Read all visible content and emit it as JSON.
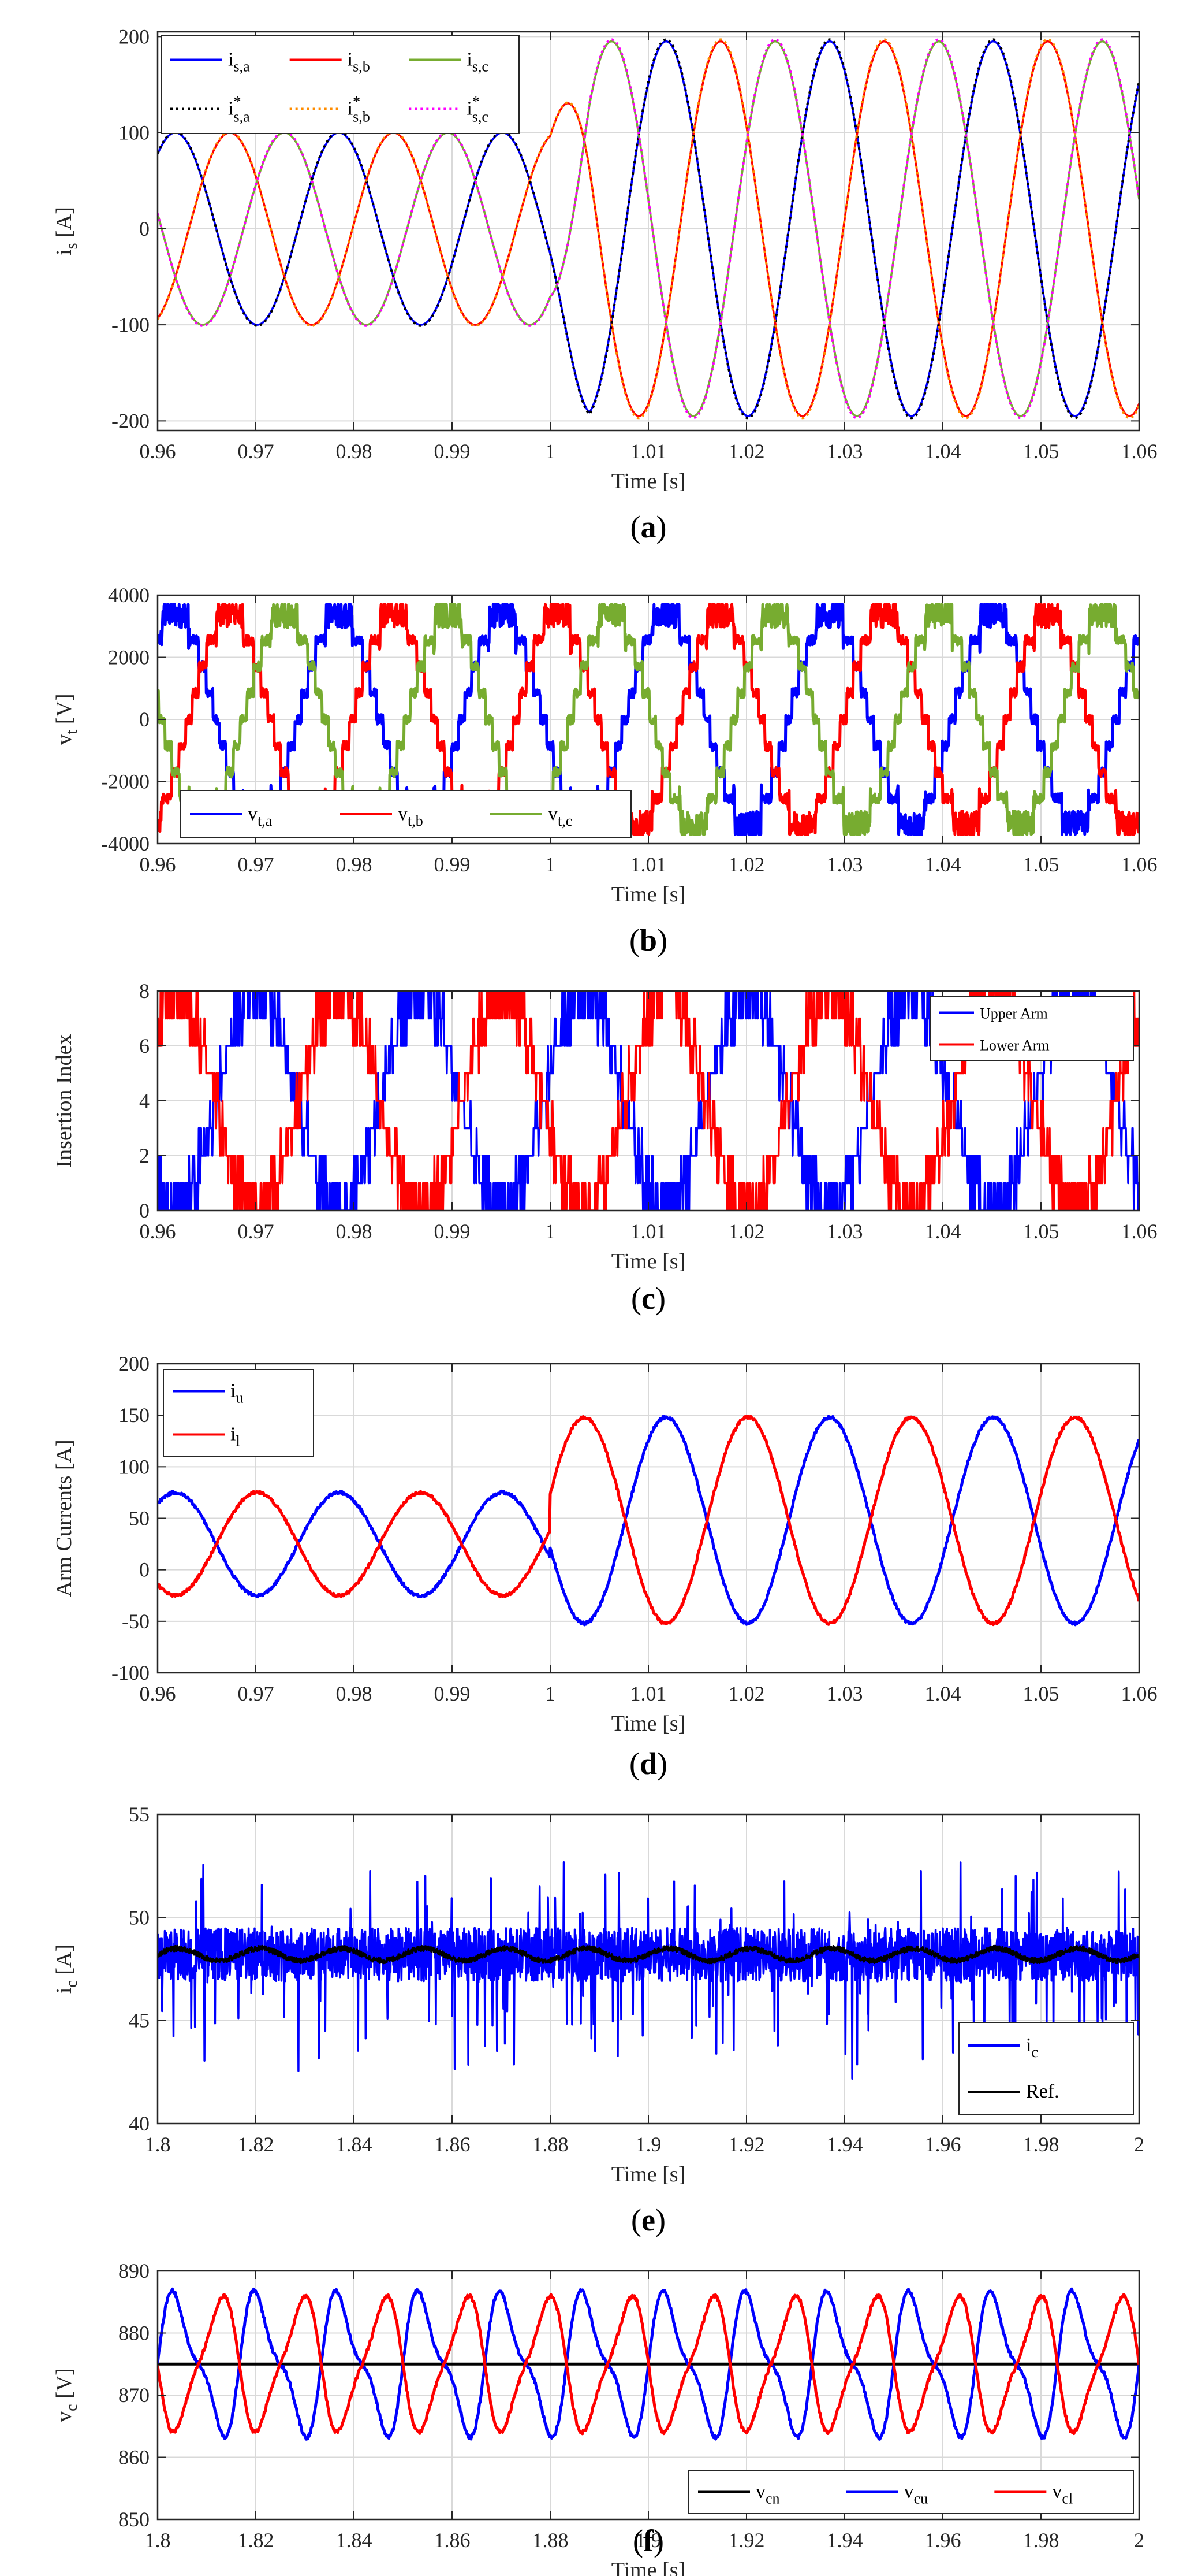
{
  "chart_data": [
    {
      "id": "a",
      "type": "line",
      "caption": "(a)",
      "xlabel": "Time [s]",
      "ylabel": {
        "main": "i",
        "sub": "s",
        "unit": " [A]"
      },
      "xlim": [
        0.96,
        1.06
      ],
      "ylim": [
        -210,
        205
      ],
      "xticks": [
        0.96,
        0.97,
        0.98,
        0.99,
        1,
        1.01,
        1.02,
        1.03,
        1.04,
        1.05,
        1.06
      ],
      "xtick_labels": [
        "0.96",
        "0.97",
        "0.98",
        "0.99",
        "1",
        "1.01",
        "1.02",
        "1.03",
        "1.04",
        "1.05",
        "1.06"
      ],
      "yticks": [
        -200,
        -100,
        0,
        100,
        200
      ],
      "ytick_labels": [
        "-200",
        "-100",
        "0",
        "100",
        "200"
      ],
      "grid": true,
      "legend_position": "top-left",
      "signal": {
        "kind": "step_sine",
        "t_step": 1.0,
        "freq_hz": 60,
        "amp_before": 100,
        "amp_after": 195,
        "offset": 0
      },
      "series": [
        {
          "name": "i_s,a",
          "label": {
            "main": "i",
            "sub": "s,a",
            "sup": ""
          },
          "color": "#0000ff",
          "style": "solid",
          "phase_deg": 195
        },
        {
          "name": "i_s,b",
          "label": {
            "main": "i",
            "sub": "s,b",
            "sup": ""
          },
          "color": "#ff0000",
          "style": "solid",
          "phase_deg": 75
        },
        {
          "name": "i_s,c",
          "label": {
            "main": "i",
            "sub": "s,c",
            "sup": ""
          },
          "color": "#77ac30",
          "style": "solid",
          "phase_deg": 315
        },
        {
          "name": "i*_s,a",
          "label": {
            "main": "i",
            "sub": "s,a",
            "sup": "*"
          },
          "color": "#000000",
          "style": "dotted",
          "phase_deg": 195
        },
        {
          "name": "i*_s,b",
          "label": {
            "main": "i",
            "sub": "s,b",
            "sup": "*"
          },
          "color": "#ff8c00",
          "style": "dotted",
          "phase_deg": 75
        },
        {
          "name": "i*_s,c",
          "label": {
            "main": "i",
            "sub": "s,c",
            "sup": "*"
          },
          "color": "#ff00ff",
          "style": "dotted",
          "phase_deg": 315
        }
      ]
    },
    {
      "id": "b",
      "type": "line",
      "caption": "(b)",
      "xlabel": "Time [s]",
      "ylabel": {
        "main": "v",
        "sub": "t",
        "unit": " [V]"
      },
      "xlim": [
        0.96,
        1.06
      ],
      "ylim": [
        -4000,
        4000
      ],
      "xticks": [
        0.96,
        0.97,
        0.98,
        0.99,
        1,
        1.01,
        1.02,
        1.03,
        1.04,
        1.05,
        1.06
      ],
      "xtick_labels": [
        "0.96",
        "0.97",
        "0.98",
        "0.99",
        "1",
        "1.01",
        "1.02",
        "1.03",
        "1.04",
        "1.05",
        "1.06"
      ],
      "yticks": [
        -4000,
        -2000,
        0,
        2000,
        4000
      ],
      "ytick_labels": [
        "-4000",
        "-2000",
        "0",
        "2000",
        "4000"
      ],
      "grid": true,
      "legend_position": "bottom-left",
      "signal": {
        "kind": "stepped_sine",
        "freq_hz": 60,
        "amp": 3400,
        "levels": 8,
        "band": 900,
        "offset": 0
      },
      "series": [
        {
          "name": "v_t,a",
          "label": {
            "main": "v",
            "sub": "t,a",
            "sup": ""
          },
          "color": "#0000ff",
          "style": "solid",
          "phase_deg": 195
        },
        {
          "name": "v_t,b",
          "label": {
            "main": "v",
            "sub": "t,b",
            "sup": ""
          },
          "color": "#ff0000",
          "style": "solid",
          "phase_deg": 75
        },
        {
          "name": "v_t,c",
          "label": {
            "main": "v",
            "sub": "t,c",
            "sup": ""
          },
          "color": "#77ac30",
          "style": "solid",
          "phase_deg": 315
        }
      ]
    },
    {
      "id": "c",
      "type": "line",
      "caption": "(c)",
      "xlabel": "Time [s]",
      "ylabel": {
        "main": "Insertion Index",
        "sub": "",
        "unit": ""
      },
      "xlim": [
        0.96,
        1.06
      ],
      "ylim": [
        0,
        8
      ],
      "xticks": [
        0.96,
        0.97,
        0.98,
        0.99,
        1,
        1.01,
        1.02,
        1.03,
        1.04,
        1.05,
        1.06
      ],
      "xtick_labels": [
        "0.96",
        "0.97",
        "0.98",
        "0.99",
        "1",
        "1.01",
        "1.02",
        "1.03",
        "1.04",
        "1.05",
        "1.06"
      ],
      "yticks": [
        0,
        2,
        4,
        6,
        8
      ],
      "ytick_labels": [
        "0",
        "2",
        "4",
        "6",
        "8"
      ],
      "grid": true,
      "legend_position": "top-right",
      "signal": {
        "kind": "insertion_index",
        "freq_hz": 60,
        "amp": 4,
        "offset": 4,
        "levels": 8,
        "band": 1.1
      },
      "series": [
        {
          "name": "Upper Arm",
          "label": {
            "main": "Upper Arm",
            "sub": "",
            "sup": ""
          },
          "color": "#0000ff",
          "style": "solid",
          "phase_deg": 15
        },
        {
          "name": "Lower Arm",
          "label": {
            "main": "Lower Arm",
            "sub": "",
            "sup": ""
          },
          "color": "#ff0000",
          "style": "solid",
          "phase_deg": 195
        }
      ]
    },
    {
      "id": "d",
      "type": "line",
      "caption": "(d)",
      "xlabel": "Time [s]",
      "ylabel": {
        "main": "Arm Currents [A]",
        "sub": "",
        "unit": ""
      },
      "xlim": [
        0.96,
        1.06
      ],
      "ylim": [
        -100,
        200
      ],
      "xticks": [
        0.96,
        0.97,
        0.98,
        0.99,
        1,
        1.01,
        1.02,
        1.03,
        1.04,
        1.05,
        1.06
      ],
      "xtick_labels": [
        "0.96",
        "0.97",
        "0.98",
        "0.99",
        "1",
        "1.01",
        "1.02",
        "1.03",
        "1.04",
        "1.05",
        "1.06"
      ],
      "yticks": [
        -100,
        -50,
        0,
        50,
        100,
        150,
        200
      ],
      "ytick_labels": [
        "-100",
        "-50",
        "0",
        "50",
        "100",
        "150",
        "200"
      ],
      "grid": true,
      "legend_position": "top-left",
      "signal": {
        "kind": "arm_current",
        "t_step": 1.0,
        "freq_hz": 60,
        "amp_before": 50,
        "amp_after": 100,
        "dc_before": 25,
        "dc_after": 48
      },
      "series": [
        {
          "name": "i_u",
          "label": {
            "main": "i",
            "sub": "u",
            "sup": ""
          },
          "color": "#0000ff",
          "style": "solid",
          "phase_deg": 195
        },
        {
          "name": "i_l",
          "label": {
            "main": "i",
            "sub": "l",
            "sup": ""
          },
          "color": "#ff0000",
          "style": "solid",
          "phase_deg": 15
        }
      ]
    },
    {
      "id": "e",
      "type": "line",
      "caption": "(e)",
      "xlabel": "Time [s]",
      "ylabel": {
        "main": "i",
        "sub": "c",
        "unit": " [A]"
      },
      "xlim": [
        1.8,
        2.0
      ],
      "ylim": [
        40,
        55
      ],
      "xticks": [
        1.8,
        1.82,
        1.84,
        1.86,
        1.88,
        1.9,
        1.92,
        1.94,
        1.96,
        1.98,
        2.0
      ],
      "xtick_labels": [
        "1.8",
        "1.82",
        "1.84",
        "1.86",
        "1.88",
        "1.9",
        "1.92",
        "1.94",
        "1.96",
        "1.98",
        "2"
      ],
      "yticks": [
        40,
        45,
        50,
        55
      ],
      "ytick_labels": [
        "40",
        "45",
        "50",
        "55"
      ],
      "grid": true,
      "legend_position": "bottom-right",
      "signal": {
        "kind": "dc_noise",
        "mean": 48.2,
        "noise": 1.3
      },
      "series": [
        {
          "name": "i_c",
          "label": {
            "main": "i",
            "sub": "c",
            "sup": ""
          },
          "color": "#0000ff",
          "style": "solid",
          "phase_deg": 0
        },
        {
          "name": "Ref.",
          "label": {
            "main": "Ref.",
            "sub": "",
            "sup": ""
          },
          "color": "#000000",
          "style": "solid",
          "phase_deg": 0
        }
      ]
    },
    {
      "id": "f",
      "type": "line",
      "caption": "(f)",
      "xlabel": "Time [s]",
      "ylabel": {
        "main": "v",
        "sub": "c",
        "unit": " [V]"
      },
      "xlim": [
        1.8,
        2.0
      ],
      "ylim": [
        850,
        890
      ],
      "xticks": [
        1.8,
        1.82,
        1.84,
        1.86,
        1.88,
        1.9,
        1.92,
        1.94,
        1.96,
        1.98,
        2.0
      ],
      "xtick_labels": [
        "1.8",
        "1.82",
        "1.84",
        "1.86",
        "1.88",
        "1.9",
        "1.92",
        "1.94",
        "1.96",
        "1.98",
        "2"
      ],
      "yticks": [
        850,
        860,
        870,
        880,
        890
      ],
      "ytick_labels": [
        "850",
        "860",
        "870",
        "880",
        "890"
      ],
      "grid": true,
      "legend_position": "bottom-right",
      "signal": {
        "kind": "cap_voltage",
        "freq_hz": 60,
        "mean": 875
      },
      "series": [
        {
          "name": "v_cn",
          "label": {
            "main": "v",
            "sub": "cn",
            "sup": ""
          },
          "color": "#000000",
          "style": "solid",
          "phase_deg": 0
        },
        {
          "name": "v_cu",
          "label": {
            "main": "v",
            "sub": "cu",
            "sup": ""
          },
          "color": "#0000ff",
          "style": "solid",
          "phase_deg": 0
        },
        {
          "name": "v_cl",
          "label": {
            "main": "v",
            "sub": "cl",
            "sup": ""
          },
          "color": "#ff0000",
          "style": "solid",
          "phase_deg": 180
        }
      ]
    }
  ]
}
